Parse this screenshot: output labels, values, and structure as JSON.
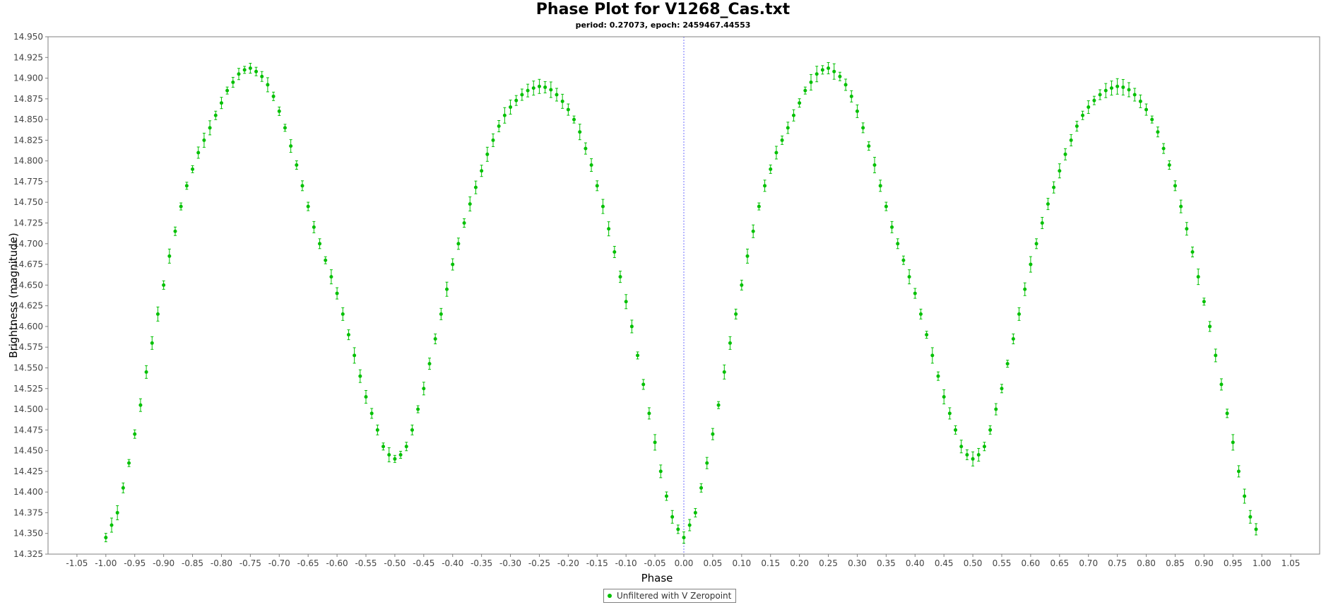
{
  "colors": {
    "series": "#00c000",
    "zero_line": "#3333ff",
    "axis": "#808080",
    "background": "#ffffff"
  },
  "chart_data": {
    "type": "scatter",
    "title": "Phase Plot for V1268_Cas.txt",
    "subtitle": "period: 0.27073, epoch: 2459467.44553",
    "xlabel": "Phase",
    "ylabel": "Brightness (magnitude)",
    "xlim": [
      -1.1,
      1.1
    ],
    "ylim": [
      14.325,
      14.95
    ],
    "y_inverted": false,
    "grid": false,
    "error_bars": true,
    "legend_position": "bottom-center",
    "x_ticks": [
      "-1.05",
      "-1.00",
      "-0.95",
      "-0.90",
      "-0.85",
      "-0.80",
      "-0.75",
      "-0.70",
      "-0.65",
      "-0.60",
      "-0.55",
      "-0.50",
      "-0.45",
      "-0.40",
      "-0.35",
      "-0.30",
      "-0.25",
      "-0.20",
      "-0.15",
      "-0.10",
      "-0.05",
      "0.00",
      "0.05",
      "0.10",
      "0.15",
      "0.20",
      "0.25",
      "0.30",
      "0.35",
      "0.40",
      "0.45",
      "0.50",
      "0.55",
      "0.60",
      "0.65",
      "0.70",
      "0.75",
      "0.80",
      "0.85",
      "0.90",
      "0.95",
      "1.00",
      "1.05"
    ],
    "y_ticks": [
      "14.325",
      "14.350",
      "14.375",
      "14.400",
      "14.425",
      "14.450",
      "14.475",
      "14.500",
      "14.525",
      "14.550",
      "14.575",
      "14.600",
      "14.625",
      "14.650",
      "14.675",
      "14.700",
      "14.725",
      "14.750",
      "14.775",
      "14.800",
      "14.825",
      "14.850",
      "14.875",
      "14.900",
      "14.925",
      "14.950"
    ],
    "vertical_marker_x": 0.0,
    "series": [
      {
        "name": "Unfiltered with V Zeropoint",
        "points": [
          [
            0.0,
            14.345
          ],
          [
            0.01,
            14.36
          ],
          [
            0.02,
            14.375
          ],
          [
            0.03,
            14.405
          ],
          [
            0.04,
            14.435
          ],
          [
            0.05,
            14.47
          ],
          [
            0.06,
            14.505
          ],
          [
            0.07,
            14.545
          ],
          [
            0.08,
            14.58
          ],
          [
            0.09,
            14.615
          ],
          [
            0.1,
            14.65
          ],
          [
            0.11,
            14.685
          ],
          [
            0.12,
            14.715
          ],
          [
            0.13,
            14.745
          ],
          [
            0.14,
            14.77
          ],
          [
            0.15,
            14.79
          ],
          [
            0.16,
            14.81
          ],
          [
            0.17,
            14.825
          ],
          [
            0.18,
            14.84
          ],
          [
            0.19,
            14.855
          ],
          [
            0.2,
            14.87
          ],
          [
            0.21,
            14.885
          ],
          [
            0.22,
            14.895
          ],
          [
            0.23,
            14.905
          ],
          [
            0.24,
            14.91
          ],
          [
            0.25,
            14.912
          ],
          [
            0.26,
            14.908
          ],
          [
            0.27,
            14.902
          ],
          [
            0.28,
            14.892
          ],
          [
            0.29,
            14.878
          ],
          [
            0.3,
            14.86
          ],
          [
            0.31,
            14.84
          ],
          [
            0.32,
            14.818
          ],
          [
            0.33,
            14.795
          ],
          [
            0.34,
            14.77
          ],
          [
            0.35,
            14.745
          ],
          [
            0.36,
            14.72
          ],
          [
            0.37,
            14.7
          ],
          [
            0.38,
            14.68
          ],
          [
            0.39,
            14.66
          ],
          [
            0.4,
            14.64
          ],
          [
            0.41,
            14.615
          ],
          [
            0.42,
            14.59
          ],
          [
            0.43,
            14.565
          ],
          [
            0.44,
            14.54
          ],
          [
            0.45,
            14.515
          ],
          [
            0.46,
            14.495
          ],
          [
            0.47,
            14.475
          ],
          [
            0.48,
            14.455
          ],
          [
            0.49,
            14.445
          ],
          [
            0.5,
            14.44
          ],
          [
            0.51,
            14.445
          ],
          [
            0.52,
            14.455
          ],
          [
            0.53,
            14.475
          ],
          [
            0.54,
            14.5
          ],
          [
            0.55,
            14.525
          ],
          [
            0.56,
            14.555
          ],
          [
            0.57,
            14.585
          ],
          [
            0.58,
            14.615
          ],
          [
            0.59,
            14.645
          ],
          [
            0.6,
            14.675
          ],
          [
            0.61,
            14.7
          ],
          [
            0.62,
            14.725
          ],
          [
            0.63,
            14.748
          ],
          [
            0.64,
            14.768
          ],
          [
            0.65,
            14.788
          ],
          [
            0.66,
            14.808
          ],
          [
            0.67,
            14.825
          ],
          [
            0.68,
            14.842
          ],
          [
            0.69,
            14.855
          ],
          [
            0.7,
            14.865
          ],
          [
            0.71,
            14.873
          ],
          [
            0.72,
            14.88
          ],
          [
            0.73,
            14.885
          ],
          [
            0.74,
            14.888
          ],
          [
            0.75,
            14.89
          ],
          [
            0.76,
            14.889
          ],
          [
            0.77,
            14.886
          ],
          [
            0.78,
            14.88
          ],
          [
            0.79,
            14.872
          ],
          [
            0.8,
            14.862
          ],
          [
            0.81,
            14.85
          ],
          [
            0.82,
            14.835
          ],
          [
            0.83,
            14.815
          ],
          [
            0.84,
            14.795
          ],
          [
            0.85,
            14.77
          ],
          [
            0.86,
            14.745
          ],
          [
            0.87,
            14.718
          ],
          [
            0.88,
            14.69
          ],
          [
            0.89,
            14.66
          ],
          [
            0.9,
            14.63
          ],
          [
            0.91,
            14.6
          ],
          [
            0.92,
            14.565
          ],
          [
            0.93,
            14.53
          ],
          [
            0.94,
            14.495
          ],
          [
            0.95,
            14.46
          ],
          [
            0.96,
            14.425
          ],
          [
            0.97,
            14.395
          ],
          [
            0.98,
            14.37
          ],
          [
            0.99,
            14.355
          ],
          [
            -1.0,
            14.345
          ],
          [
            -0.99,
            14.36
          ],
          [
            -0.98,
            14.375
          ],
          [
            -0.97,
            14.405
          ],
          [
            -0.96,
            14.435
          ],
          [
            -0.95,
            14.47
          ],
          [
            -0.94,
            14.505
          ],
          [
            -0.93,
            14.545
          ],
          [
            -0.92,
            14.58
          ],
          [
            -0.91,
            14.615
          ],
          [
            -0.9,
            14.65
          ],
          [
            -0.89,
            14.685
          ],
          [
            -0.88,
            14.715
          ],
          [
            -0.87,
            14.745
          ],
          [
            -0.86,
            14.77
          ],
          [
            -0.85,
            14.79
          ],
          [
            -0.84,
            14.81
          ],
          [
            -0.83,
            14.825
          ],
          [
            -0.82,
            14.84
          ],
          [
            -0.81,
            14.855
          ],
          [
            -0.8,
            14.87
          ],
          [
            -0.79,
            14.885
          ],
          [
            -0.78,
            14.895
          ],
          [
            -0.77,
            14.905
          ],
          [
            -0.76,
            14.91
          ],
          [
            -0.75,
            14.912
          ],
          [
            -0.74,
            14.908
          ],
          [
            -0.73,
            14.902
          ],
          [
            -0.72,
            14.892
          ],
          [
            -0.71,
            14.878
          ],
          [
            -0.7,
            14.86
          ],
          [
            -0.69,
            14.84
          ],
          [
            -0.68,
            14.818
          ],
          [
            -0.67,
            14.795
          ],
          [
            -0.66,
            14.77
          ],
          [
            -0.65,
            14.745
          ],
          [
            -0.64,
            14.72
          ],
          [
            -0.63,
            14.7
          ],
          [
            -0.62,
            14.68
          ],
          [
            -0.61,
            14.66
          ],
          [
            -0.6,
            14.64
          ],
          [
            -0.59,
            14.615
          ],
          [
            -0.58,
            14.59
          ],
          [
            -0.57,
            14.565
          ],
          [
            -0.56,
            14.54
          ],
          [
            -0.55,
            14.515
          ],
          [
            -0.54,
            14.495
          ],
          [
            -0.53,
            14.475
          ],
          [
            -0.52,
            14.455
          ],
          [
            -0.51,
            14.445
          ],
          [
            -0.5,
            14.44
          ],
          [
            -0.49,
            14.445
          ],
          [
            -0.48,
            14.455
          ],
          [
            -0.47,
            14.475
          ],
          [
            -0.46,
            14.5
          ],
          [
            -0.45,
            14.525
          ],
          [
            -0.44,
            14.555
          ],
          [
            -0.43,
            14.585
          ],
          [
            -0.42,
            14.615
          ],
          [
            -0.41,
            14.645
          ],
          [
            -0.4,
            14.675
          ],
          [
            -0.39,
            14.7
          ],
          [
            -0.38,
            14.725
          ],
          [
            -0.37,
            14.748
          ],
          [
            -0.36,
            14.768
          ],
          [
            -0.35,
            14.788
          ],
          [
            -0.34,
            14.808
          ],
          [
            -0.33,
            14.825
          ],
          [
            -0.32,
            14.842
          ],
          [
            -0.31,
            14.855
          ],
          [
            -0.3,
            14.865
          ],
          [
            -0.29,
            14.873
          ],
          [
            -0.28,
            14.88
          ],
          [
            -0.27,
            14.885
          ],
          [
            -0.26,
            14.888
          ],
          [
            -0.25,
            14.89
          ],
          [
            -0.24,
            14.889
          ],
          [
            -0.23,
            14.886
          ],
          [
            -0.22,
            14.88
          ],
          [
            -0.21,
            14.872
          ],
          [
            -0.2,
            14.862
          ],
          [
            -0.19,
            14.85
          ],
          [
            -0.18,
            14.835
          ],
          [
            -0.17,
            14.815
          ],
          [
            -0.16,
            14.795
          ],
          [
            -0.15,
            14.77
          ],
          [
            -0.14,
            14.745
          ],
          [
            -0.13,
            14.718
          ],
          [
            -0.12,
            14.69
          ],
          [
            -0.11,
            14.66
          ],
          [
            -0.1,
            14.63
          ],
          [
            -0.09,
            14.6
          ],
          [
            -0.08,
            14.565
          ],
          [
            -0.07,
            14.53
          ],
          [
            -0.06,
            14.495
          ],
          [
            -0.05,
            14.46
          ],
          [
            -0.04,
            14.425
          ],
          [
            -0.03,
            14.395
          ],
          [
            -0.02,
            14.37
          ],
          [
            -0.01,
            14.355
          ]
        ]
      }
    ]
  }
}
